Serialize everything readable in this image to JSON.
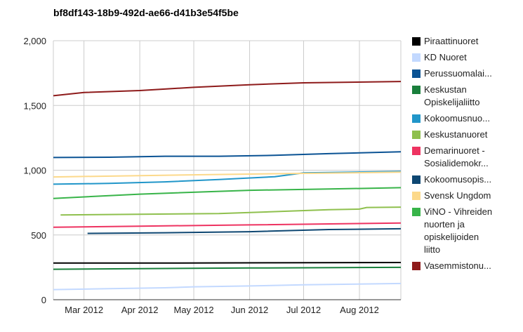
{
  "chart_data": {
    "type": "line",
    "title": "bf8df143-18b9-492d-ae66-d41b3e54f5be",
    "xlabel": "",
    "ylabel": "",
    "ylim": [
      0,
      2000
    ],
    "y_ticks": [
      {
        "value": 0,
        "label": "0"
      },
      {
        "value": 500,
        "label": "500"
      },
      {
        "value": 1000,
        "label": "1,000"
      },
      {
        "value": 1500,
        "label": "1,500"
      },
      {
        "value": 2000,
        "label": "2,000"
      }
    ],
    "x_range": [
      "2012-02-13",
      "2012-08-24"
    ],
    "x_ticks": [
      {
        "date": "2012-03-01",
        "label": "Mar 2012"
      },
      {
        "date": "2012-04-01",
        "label": "Apr 2012"
      },
      {
        "date": "2012-05-01",
        "label": "May 2012"
      },
      {
        "date": "2012-06-01",
        "label": "Jun 2012"
      },
      {
        "date": "2012-07-01",
        "label": "Jul 2012"
      },
      {
        "date": "2012-08-01",
        "label": "Aug 2012"
      }
    ],
    "grid": true,
    "legend_position": "right",
    "series": [
      {
        "name": "Piraattinuoret",
        "color": "#000000",
        "x": [
          "2012-02-13",
          "2012-04-15",
          "2012-06-15",
          "2012-08-24"
        ],
        "values": [
          283,
          283,
          285,
          287
        ]
      },
      {
        "name": "KD Nuoret",
        "color": "#c3d9ff",
        "x": [
          "2012-02-13",
          "2012-03-15",
          "2012-04-15",
          "2012-05-01",
          "2012-06-01",
          "2012-07-01",
          "2012-08-24"
        ],
        "values": [
          78,
          85,
          92,
          100,
          106,
          115,
          125
        ]
      },
      {
        "name": "Perussuomalai...",
        "color": "#0b5394",
        "x": [
          "2012-02-13",
          "2012-03-15",
          "2012-04-15",
          "2012-05-15",
          "2012-06-15",
          "2012-07-15",
          "2012-08-24"
        ],
        "values": [
          1098,
          1100,
          1108,
          1108,
          1115,
          1128,
          1142
        ]
      },
      {
        "name": "Keskustan\nOpiskelijaliitto",
        "color": "#1a7f3c",
        "x": [
          "2012-02-13",
          "2012-04-01",
          "2012-06-01",
          "2012-08-24"
        ],
        "values": [
          235,
          240,
          245,
          250
        ]
      },
      {
        "name": "Kokoomusnuo...",
        "color": "#2196c9",
        "x": [
          "2012-02-13",
          "2012-03-15",
          "2012-04-15",
          "2012-05-15",
          "2012-06-15",
          "2012-07-01",
          "2012-08-24"
        ],
        "values": [
          892,
          898,
          910,
          928,
          950,
          980,
          990
        ]
      },
      {
        "name": "Keskustanuoret",
        "color": "#8fc04e",
        "x": [
          "2012-02-17",
          "2012-04-01",
          "2012-05-15",
          "2012-06-15",
          "2012-07-15",
          "2012-08-01",
          "2012-08-05",
          "2012-08-24"
        ],
        "values": [
          655,
          660,
          665,
          680,
          695,
          700,
          712,
          715
        ]
      },
      {
        "name": "Demarinuoret -\nSosialidemokr...",
        "color": "#ee3361",
        "x": [
          "2012-02-13",
          "2012-04-01",
          "2012-06-01",
          "2012-08-24"
        ],
        "values": [
          560,
          568,
          578,
          592
        ]
      },
      {
        "name": "Kokoomusopis...",
        "color": "#0e4772",
        "x": [
          "2012-03-03",
          "2012-04-15",
          "2012-06-01",
          "2012-07-15",
          "2012-08-24"
        ],
        "values": [
          512,
          517,
          525,
          542,
          548
        ]
      },
      {
        "name": "Svensk Ungdom",
        "color": "#fcd98b",
        "x": [
          "2012-02-13",
          "2012-04-01",
          "2012-06-01",
          "2012-07-15",
          "2012-08-24"
        ],
        "values": [
          948,
          958,
          970,
          978,
          985
        ]
      },
      {
        "name": "ViNO - Vihreiden\nnuorten ja\nopiskelijoiden\nliitto",
        "color": "#38b449",
        "x": [
          "2012-02-13",
          "2012-04-01",
          "2012-06-01",
          "2012-07-15",
          "2012-08-24"
        ],
        "values": [
          782,
          815,
          845,
          855,
          865
        ]
      },
      {
        "name": "Vasemmistonu...",
        "color": "#8e1b1b",
        "x": [
          "2012-02-13",
          "2012-03-01",
          "2012-04-01",
          "2012-05-01",
          "2012-06-01",
          "2012-07-01",
          "2012-08-24"
        ],
        "values": [
          1575,
          1600,
          1615,
          1640,
          1660,
          1675,
          1685
        ]
      }
    ]
  }
}
